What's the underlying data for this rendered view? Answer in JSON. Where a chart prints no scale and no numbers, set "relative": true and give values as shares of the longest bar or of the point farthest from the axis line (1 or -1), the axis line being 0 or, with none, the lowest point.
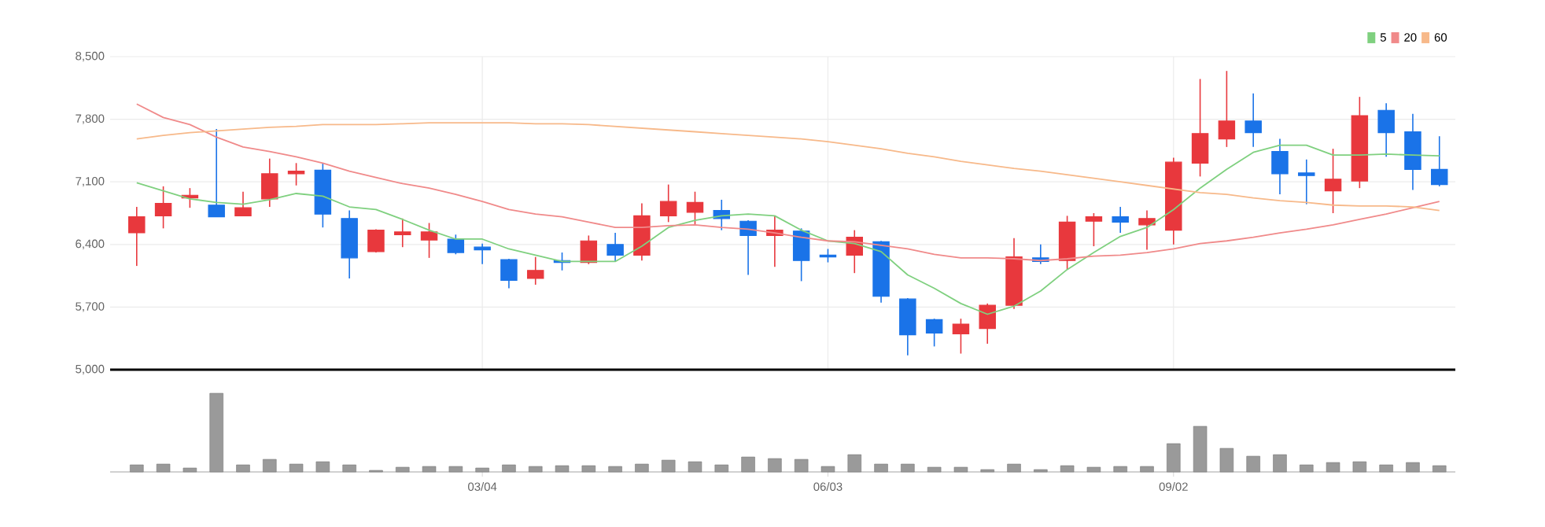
{
  "chart_data": [
    {
      "type": "candlestick",
      "categories": [
        null,
        null,
        null,
        null,
        null,
        null,
        null,
        null,
        null,
        null,
        null,
        null,
        null,
        null,
        null,
        null,
        null,
        null,
        null,
        null,
        null,
        null,
        null,
        null,
        null,
        null,
        null,
        null,
        null,
        null,
        null,
        null,
        null,
        null,
        null,
        null,
        null,
        null,
        null,
        null,
        null,
        null,
        null,
        null,
        null,
        null,
        null,
        null,
        null,
        null
      ],
      "ohlc": [
        [
          6530,
          6820,
          6160,
          6710
        ],
        [
          6720,
          7050,
          6580,
          6860
        ],
        [
          6920,
          7030,
          6810,
          6950
        ],
        [
          6840,
          7690,
          6710,
          6710
        ],
        [
          6720,
          6990,
          6720,
          6810
        ],
        [
          6910,
          7360,
          6820,
          7190
        ],
        [
          7190,
          7310,
          7060,
          7220
        ],
        [
          7230,
          7310,
          6590,
          6740
        ],
        [
          6690,
          6780,
          6020,
          6250
        ],
        [
          6320,
          6570,
          6310,
          6560
        ],
        [
          6510,
          6690,
          6370,
          6540
        ],
        [
          6450,
          6640,
          6250,
          6540
        ],
        [
          6460,
          6510,
          6290,
          6310
        ],
        [
          6370,
          6410,
          6180,
          6340
        ],
        [
          6230,
          6240,
          5910,
          6000
        ],
        [
          6020,
          6260,
          5950,
          6110
        ],
        [
          6220,
          6310,
          6110,
          6200
        ],
        [
          6200,
          6500,
          6180,
          6440
        ],
        [
          6400,
          6530,
          6210,
          6280
        ],
        [
          6280,
          6860,
          6220,
          6720
        ],
        [
          6720,
          7070,
          6650,
          6880
        ],
        [
          6760,
          6990,
          6620,
          6870
        ],
        [
          6780,
          6900,
          6560,
          6690
        ],
        [
          6660,
          6670,
          6060,
          6500
        ],
        [
          6500,
          6720,
          6150,
          6560
        ],
        [
          6550,
          6580,
          5990,
          6220
        ],
        [
          6280,
          6350,
          6200,
          6260
        ],
        [
          6280,
          6560,
          6080,
          6480
        ],
        [
          6430,
          6440,
          5750,
          5820
        ],
        [
          5790,
          5800,
          5160,
          5390
        ],
        [
          5560,
          5570,
          5260,
          5410
        ],
        [
          5400,
          5570,
          5180,
          5510
        ],
        [
          5460,
          5740,
          5290,
          5720
        ],
        [
          5720,
          6470,
          5680,
          6260
        ],
        [
          6250,
          6400,
          6180,
          6210
        ],
        [
          6220,
          6720,
          6120,
          6650
        ],
        [
          6660,
          6750,
          6380,
          6710
        ],
        [
          6710,
          6820,
          6530,
          6650
        ],
        [
          6620,
          6780,
          6340,
          6690
        ],
        [
          6560,
          7370,
          6400,
          7320
        ],
        [
          7310,
          8250,
          7160,
          7640
        ],
        [
          7580,
          8340,
          7490,
          7780
        ],
        [
          7780,
          8090,
          7490,
          7650
        ],
        [
          7440,
          7580,
          6960,
          7190
        ],
        [
          7200,
          7350,
          6850,
          7170
        ],
        [
          7000,
          7470,
          6750,
          7130
        ],
        [
          7110,
          8050,
          7030,
          7840
        ],
        [
          7900,
          7980,
          7380,
          7650
        ],
        [
          7660,
          7860,
          7010,
          7240
        ],
        [
          7240,
          7610,
          7050,
          7070
        ]
      ],
      "colors": [
        "#e8383d",
        "#e8383d",
        "#e8383d",
        "#1a73e8",
        "#e8383d",
        "#e8383d",
        "#e8383d",
        "#1a73e8",
        "#1a73e8",
        "#e8383d",
        "#e8383d",
        "#e8383d",
        "#1a73e8",
        "#1a73e8",
        "#1a73e8",
        "#e8383d",
        "#1a73e8",
        "#e8383d",
        "#1a73e8",
        "#e8383d",
        "#e8383d",
        "#e8383d",
        "#1a73e8",
        "#1a73e8",
        "#e8383d",
        "#1a73e8",
        "#1a73e8",
        "#e8383d",
        "#1a73e8",
        "#1a73e8",
        "#1a73e8",
        "#e8383d",
        "#e8383d",
        "#e8383d",
        "#1a73e8",
        "#e8383d",
        "#e8383d",
        "#1a73e8",
        "#e8383d",
        "#e8383d",
        "#e8383d",
        "#e8383d",
        "#1a73e8",
        "#1a73e8",
        "#1a73e8",
        "#e8383d",
        "#e8383d",
        "#1a73e8",
        "#1a73e8",
        "#1a73e8"
      ],
      "series": [
        {
          "name": "5",
          "type": "line",
          "color": "#7fd07f",
          "values": [
            7090,
            7000,
            6910,
            6870,
            6850,
            6900,
            6970,
            6940,
            6820,
            6790,
            6680,
            6560,
            6460,
            6460,
            6350,
            6280,
            6210,
            6210,
            6210,
            6380,
            6590,
            6670,
            6720,
            6740,
            6720,
            6560,
            6440,
            6410,
            6320,
            6060,
            5910,
            5740,
            5620,
            5710,
            5880,
            6120,
            6310,
            6490,
            6590,
            6790,
            7030,
            7240,
            7430,
            7510,
            7510,
            7400,
            7400,
            7410,
            7400,
            7390
          ]
        },
        {
          "name": "20",
          "type": "line",
          "color": "#f08a8a",
          "values": [
            7970,
            7820,
            7740,
            7600,
            7490,
            7440,
            7380,
            7310,
            7220,
            7150,
            7080,
            7030,
            6960,
            6880,
            6790,
            6740,
            6710,
            6650,
            6590,
            6590,
            6610,
            6620,
            6590,
            6570,
            6530,
            6480,
            6440,
            6430,
            6390,
            6350,
            6290,
            6250,
            6250,
            6240,
            6220,
            6240,
            6270,
            6280,
            6310,
            6350,
            6410,
            6440,
            6480,
            6530,
            6570,
            6620,
            6680,
            6740,
            6810,
            6880
          ]
        },
        {
          "name": "60",
          "type": "line",
          "color": "#f7b98a",
          "values": [
            7580,
            7620,
            7650,
            7670,
            7690,
            7710,
            7720,
            7740,
            7740,
            7740,
            7750,
            7760,
            7760,
            7760,
            7760,
            7750,
            7750,
            7740,
            7720,
            7700,
            7680,
            7660,
            7640,
            7620,
            7600,
            7580,
            7550,
            7510,
            7470,
            7420,
            7380,
            7330,
            7290,
            7250,
            7220,
            7180,
            7140,
            7100,
            7060,
            7020,
            6980,
            6960,
            6920,
            6890,
            6870,
            6840,
            6830,
            6830,
            6820,
            6780
          ]
        }
      ],
      "ylim": [
        5000,
        8500
      ],
      "yticks": [
        {
          "value": 5000,
          "label": "5,000"
        },
        {
          "value": 5700,
          "label": "5,700"
        },
        {
          "value": 6400,
          "label": "6,400"
        },
        {
          "value": 7100,
          "label": "7,100"
        },
        {
          "value": 7800,
          "label": "7,800"
        },
        {
          "value": 8500,
          "label": "8,500"
        }
      ],
      "grid": true,
      "tick_labels": "y",
      "legend": "top right"
    },
    {
      "type": "bar",
      "categories": [
        null,
        null,
        null,
        null,
        null,
        null,
        null,
        null,
        null,
        null,
        null,
        null,
        null,
        "03/04",
        null,
        null,
        null,
        null,
        null,
        null,
        null,
        null,
        null,
        null,
        null,
        null,
        "06/03",
        null,
        null,
        null,
        null,
        null,
        null,
        null,
        null,
        null,
        null,
        null,
        null,
        "09/02",
        null,
        null,
        null,
        null,
        null,
        null,
        null,
        null,
        null,
        null
      ],
      "values": [
        0.09,
        0.1,
        0.05,
        1,
        0.09,
        0.16,
        0.1,
        0.13,
        0.09,
        0.02,
        0.06,
        0.07,
        0.07,
        0.05,
        0.09,
        0.07,
        0.08,
        0.08,
        0.07,
        0.1,
        0.15,
        0.13,
        0.09,
        0.19,
        0.17,
        0.16,
        0.07,
        0.22,
        0.1,
        0.1,
        0.06,
        0.06,
        0.03,
        0.1,
        0.03,
        0.08,
        0.06,
        0.07,
        0.07,
        0.36,
        0.58,
        0.3,
        0.2,
        0.22,
        0.09,
        0.12,
        0.13,
        0.09,
        0.12,
        0.08
      ],
      "color": "#9a9a9a",
      "relative": true,
      "tick_labels": "x"
    }
  ]
}
